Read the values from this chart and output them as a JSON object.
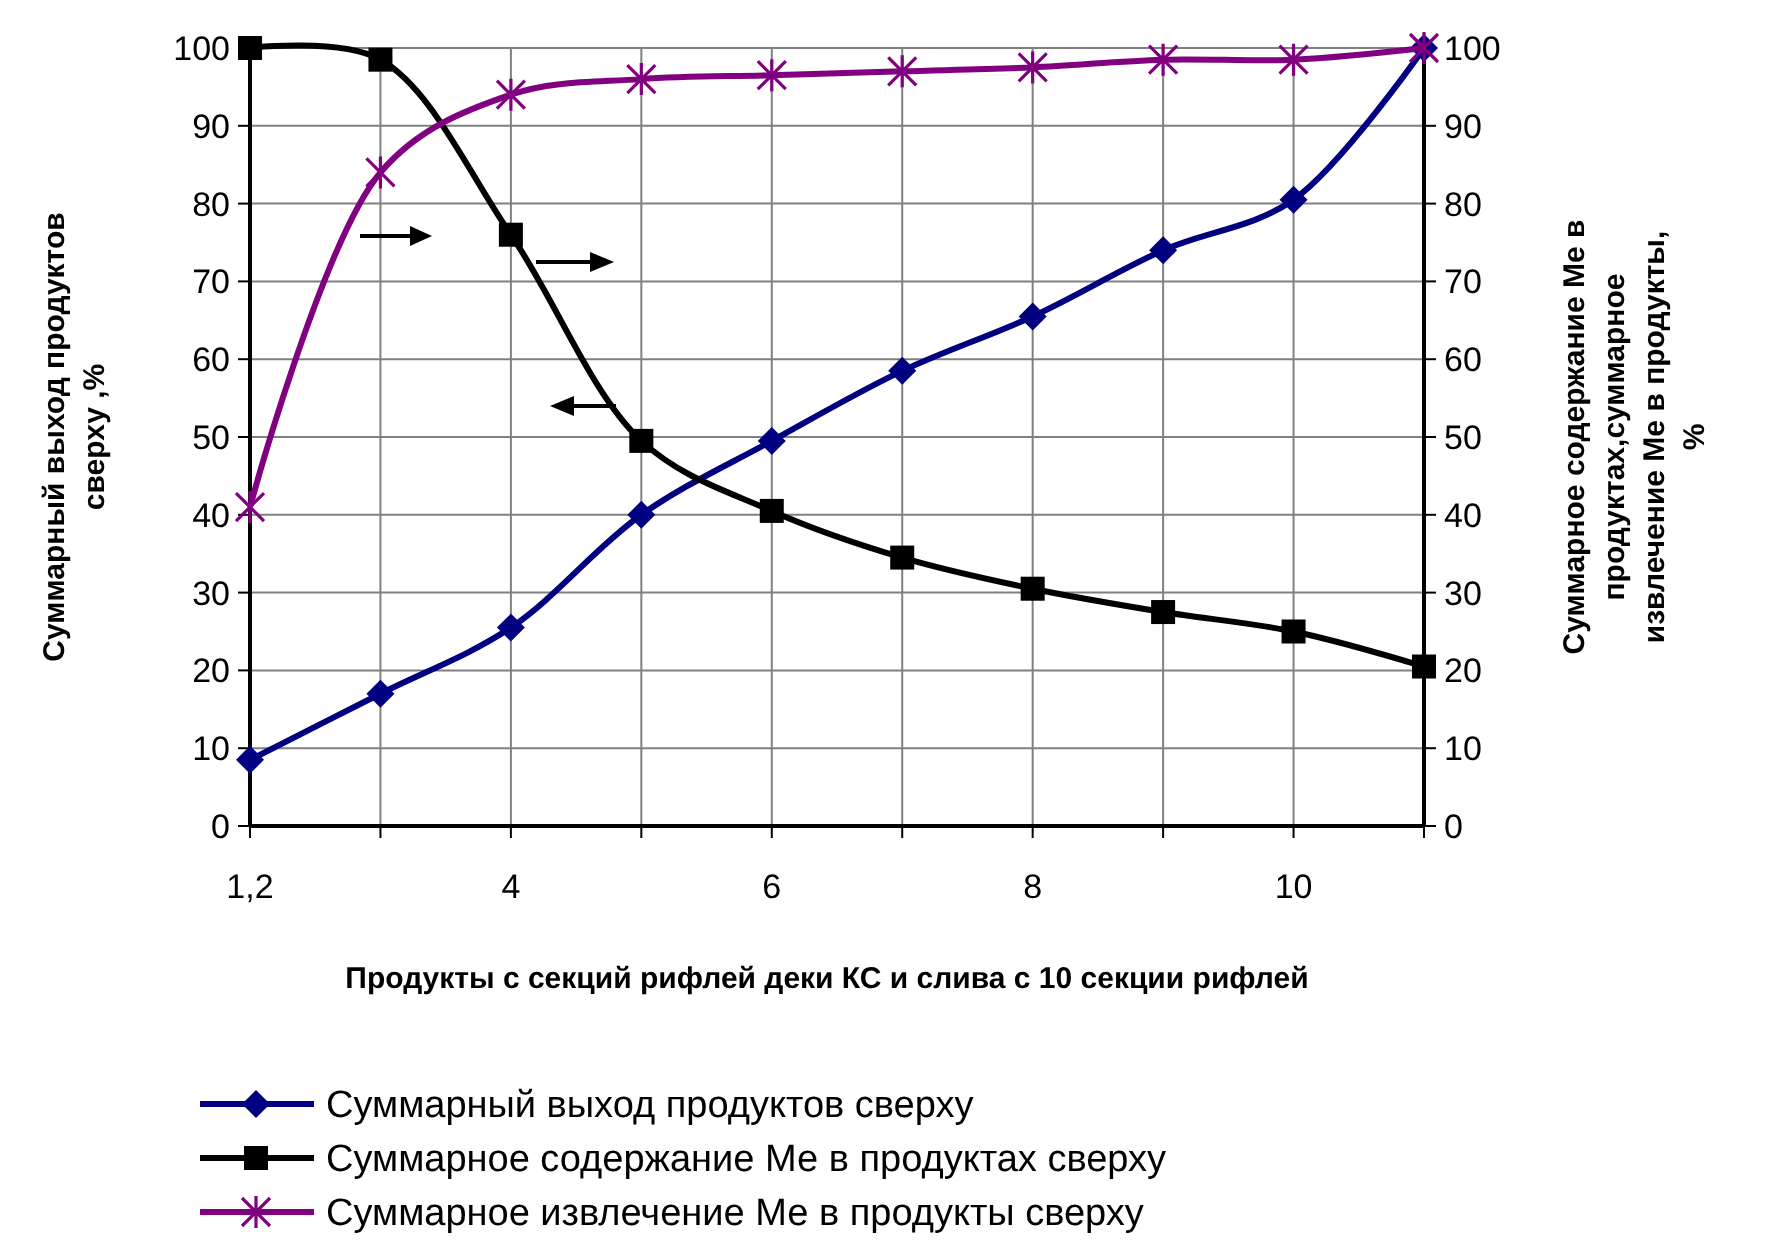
{
  "chart_data": {
    "type": "line",
    "xlabel": "Продукты с секций рифлей деки КС и слива с 10 секции рифлей",
    "ylabel": "Суммарный выход продуктов\nсверху ,%",
    "y2label": "Суммарное содержание Ме в\nпродуктах,суммарное\nизвлечение Ме в продукты,\n%",
    "categories": [
      "1,2",
      null,
      "4",
      null,
      "6",
      null,
      "8",
      null,
      "10",
      null
    ],
    "ylim": [
      0,
      100
    ],
    "yticks": [
      0,
      10,
      20,
      30,
      40,
      50,
      60,
      70,
      80,
      90,
      100
    ],
    "y2lim": [
      0,
      100
    ],
    "y2ticks": [
      0,
      10,
      20,
      30,
      40,
      50,
      60,
      70,
      80,
      90,
      100
    ],
    "grid": true,
    "legend": "bottom",
    "series": [
      {
        "name": "Суммарный выход продуктов сверху",
        "color": "#000080",
        "marker": "diamond",
        "values": [
          8.5,
          17,
          25.5,
          40,
          49.5,
          58.5,
          65.5,
          74,
          80.5,
          100
        ]
      },
      {
        "name": "Суммарное содержание Ме в продуктах сверху",
        "color": "#000000",
        "marker": "square",
        "values": [
          100,
          98.5,
          76,
          49.5,
          40.5,
          34.5,
          30.5,
          27.5,
          25,
          20.5
        ]
      },
      {
        "name": "Суммарное извлечение Ме в продукты сверху",
        "color": "#800080",
        "marker": "cross",
        "values": [
          41,
          84,
          94,
          96,
          96.5,
          97,
          97.5,
          98.5,
          98.5,
          100
        ]
      }
    ]
  }
}
